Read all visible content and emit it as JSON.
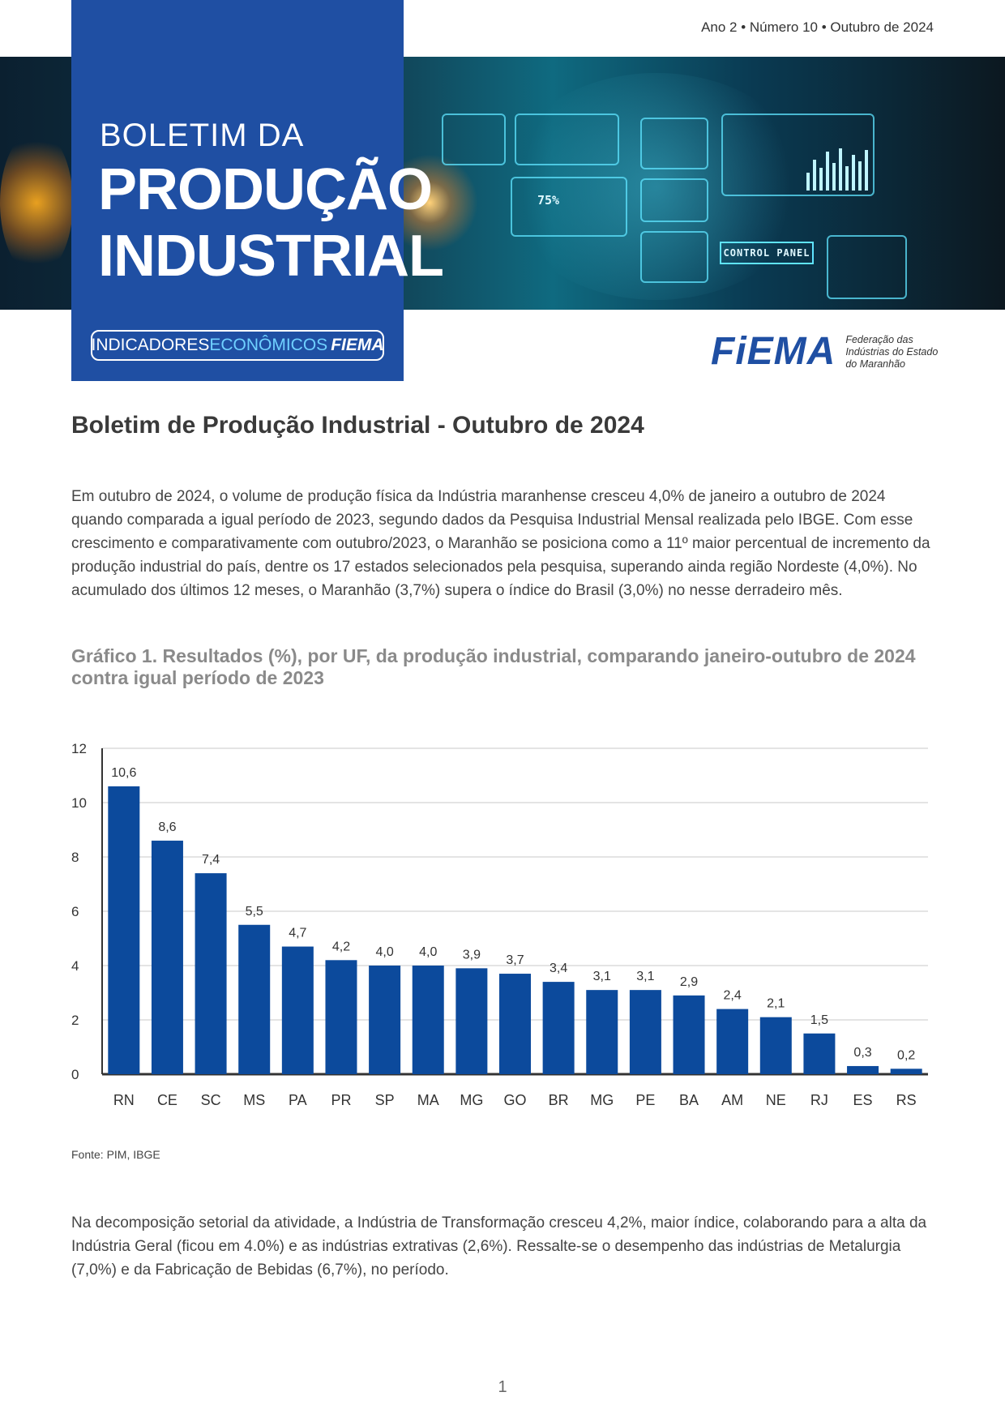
{
  "header": {
    "issue": "Ano 2 • Número 10 • Outubro de 2024",
    "title_line1": "BOLETIM DA",
    "title_line2": "PRODUÇÃO",
    "title_line3": "INDUSTRIAL",
    "badge_part1": "INDICADORES",
    "badge_part2": "ECONÔMICOS",
    "badge_part3": "FIEMA",
    "banner_label": "CONTROL PANEL",
    "banner_pct": "75%"
  },
  "logo": {
    "text": "FiEMA",
    "subtitle_line1": "Federação das",
    "subtitle_line2": "Indústrias do Estado",
    "subtitle_line3": "do Maranhão"
  },
  "doc": {
    "title": "Boletim de Produção Industrial - Outubro de 2024",
    "paragraph1": "Em outubro de 2024, o volume de produção física da Indústria maranhense cresceu 4,0% de janeiro a outubro de 2024 quando comparada a igual período de 2023, segundo dados da Pesquisa Industrial Mensal realizada pelo IBGE. Com esse crescimento e comparativamente com outubro/2023, o Maranhão se posiciona como a 11º maior percentual de incremento da produção industrial do país, dentre os 17 estados selecionados pela pesquisa, superando ainda região Nordeste (4,0%). No acumulado dos últimos 12 meses, o Maranhão (3,7%) supera o índice do Brasil (3,0%) no nesse derradeiro mês.",
    "paragraph2": "Na decomposição setorial da atividade, a Indústria de Transformação cresceu 4,2%, maior índice, colaborando para a alta da Indústria Geral (ficou em 4.0%) e as indústrias extrativas (2,6%). Ressalte-se o desempenho das indústrias de Metalurgia (7,0%) e da Fabricação de Bebidas (6,7%), no período.",
    "page_number": "1"
  },
  "chart_title": "Gráfico 1. Resultados (%), por UF, da produção industrial, comparando janeiro-outubro de 2024 contra igual período de 2023",
  "chart_source": "Fonte: PIM, IBGE",
  "chart_data": {
    "type": "bar",
    "categories": [
      "RN",
      "CE",
      "SC",
      "MS",
      "PA",
      "PR",
      "SP",
      "MA",
      "MG",
      "GO",
      "BR",
      "MG",
      "PE",
      "BA",
      "AM",
      "NE",
      "RJ",
      "ES",
      "RS"
    ],
    "values": [
      10.6,
      8.6,
      7.4,
      5.5,
      4.7,
      4.2,
      4.0,
      4.0,
      3.9,
      3.7,
      3.4,
      3.1,
      3.1,
      2.9,
      2.4,
      2.1,
      1.5,
      0.3,
      0.2
    ],
    "value_labels": [
      "10,6",
      "8,6",
      "7,4",
      "5,5",
      "4,7",
      "4,2",
      "4,0",
      "4,0",
      "3,9",
      "3,7",
      "3,4",
      "3,1",
      "3,1",
      "2,9",
      "2,4",
      "2,1",
      "1,5",
      "0,3",
      "0,2"
    ],
    "ylim": [
      0,
      12
    ],
    "yticks": [
      0,
      2,
      4,
      6,
      8,
      10,
      12
    ],
    "grid": true,
    "bar_color": "#0c4a9c"
  }
}
